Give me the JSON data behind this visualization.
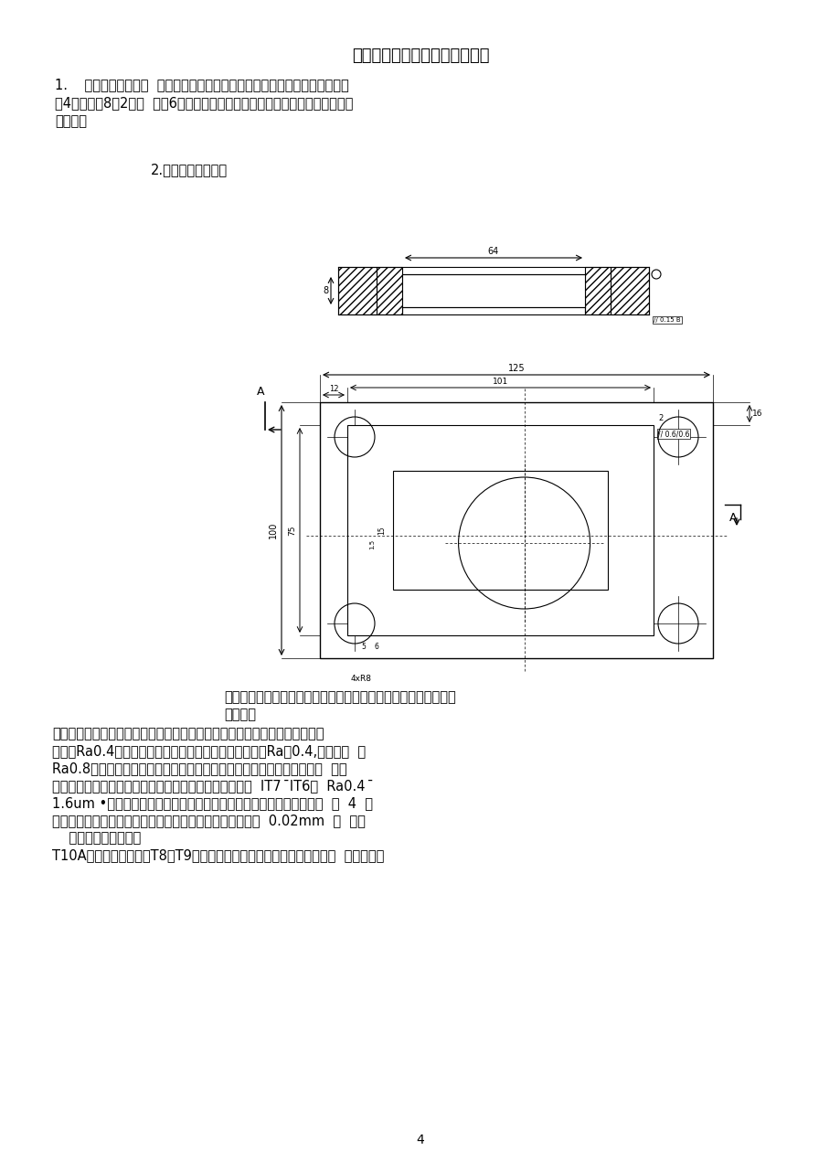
{
  "bg_color": "#ffffff",
  "title": "第一章、零件的技术要求及分析",
  "para1_lines": [
    "1.    零件结构形状分析  该零件从形体上分析其总体结构为平行六面体，上表面",
    "有4个直径为8，2个直  径为6的凹模通孔，中间为下凹的型腔，因此其结构形状",
    "较简单。"
  ],
  "label2_text": "2.图纸技术要求分析",
  "para3_lines": [
    "如图可知，该零件形状比较简单，外形尺寸也不大。要求的尺寸标",
    "注采用统"
  ],
  "para4_lines": [
    "的基准即设计基准，零件内腔各表面的粗糙度要求较高，下凹部分的表面粗糙",
    "度达到Ra0.4。另外，该零件有一个固定孔，其精度要求Ra为0.4,平面部分  位",
    "Ra0.8。另外零件上孔比较多，要求有一定的位置精度。零件上各孔的精  度，",
    "垂直度和孔间距要求。常用零件各孔径的配合精度一般为  IT7  ̄IT6，  Ra0.4  ̄",
    "1.6um •对安装滑动导柱的零件，孔轴线与上下模座平面的垂直度要求  为  4  级",
    "精度。零件上各孔之间的孔间应保持一致，一般误差要求在  0.02mm  以  下。",
    "    材料的机械性能分析",
    "T10A强度及耐磨性均较T8和T9高，但热硬性低、淬透性不高且淬火变形  大。适于制"
  ],
  "page_num": "4"
}
